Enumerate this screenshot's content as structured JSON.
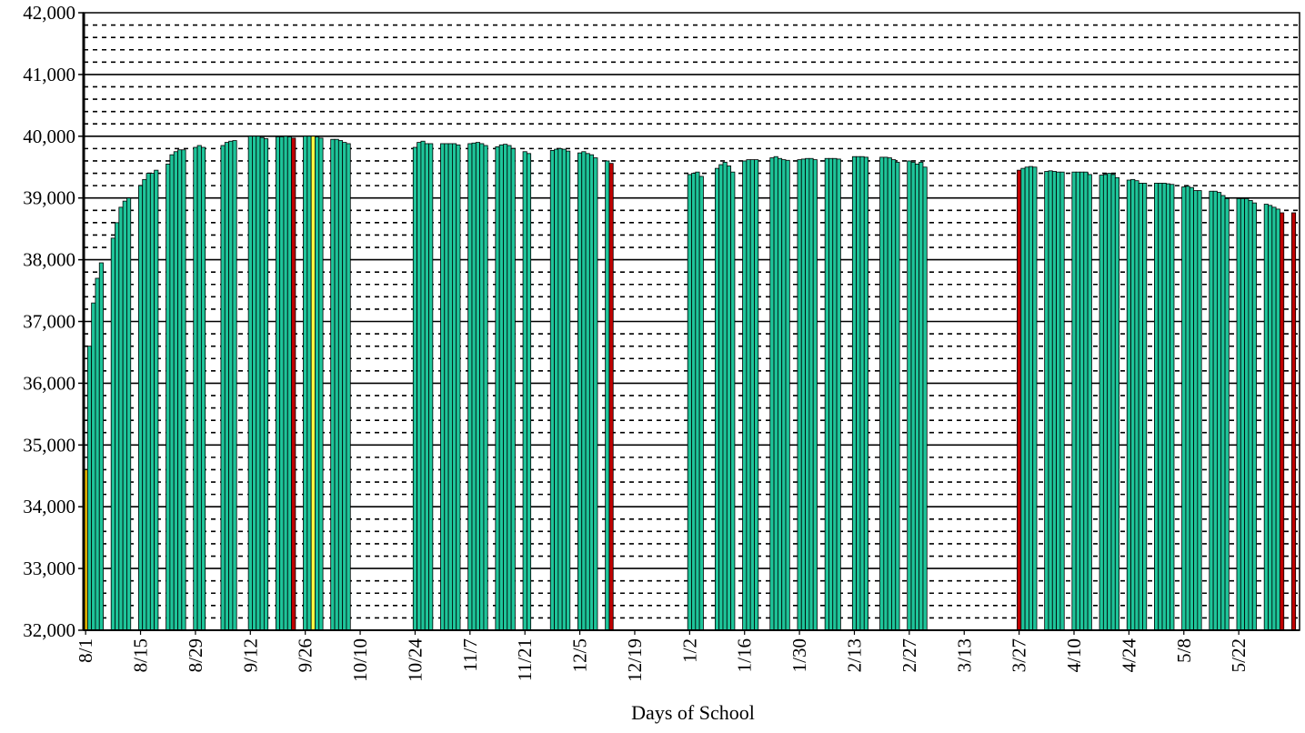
{
  "chart_data": {
    "type": "bar",
    "title": "",
    "xlabel": "Days of School",
    "ylabel": "",
    "ylim": [
      32000,
      42000
    ],
    "y_ticks": [
      "32,000",
      "33,000",
      "34,000",
      "35,000",
      "36,000",
      "37,000",
      "38,000",
      "39,000",
      "40,000",
      "41,000",
      "42,000"
    ],
    "x_tick_labels": [
      "8/1",
      "8/15",
      "8/29",
      "9/12",
      "9/26",
      "10/10",
      "10/24",
      "11/7",
      "11/21",
      "12/5",
      "12/19",
      "1/2",
      "1/16",
      "1/30",
      "2/13",
      "2/27",
      "3/13",
      "3/27",
      "4/10",
      "4/24",
      "5/8",
      "5/22"
    ],
    "grid": {
      "major": "solid",
      "minor": "dotted",
      "minor_step": 200
    },
    "colors": {
      "regular": "#1ec59a",
      "first_day": "#f0c000",
      "holiday_week": "#c00000",
      "highlight": "#ffff44",
      "edge": "#000000",
      "frame": "#000000"
    },
    "series": [
      {
        "values": [
          [
            0,
            34600,
            "first_day"
          ],
          [
            1,
            36600
          ],
          [
            2,
            37300
          ],
          [
            3,
            37700
          ],
          [
            4,
            37950
          ],
          [
            7,
            38350
          ],
          [
            8,
            38600
          ],
          [
            9,
            38850
          ],
          [
            10,
            38950
          ],
          [
            11,
            39000
          ],
          [
            14,
            39200
          ],
          [
            15,
            39300
          ],
          [
            16,
            39400
          ],
          [
            17,
            39400
          ],
          [
            18,
            39450
          ],
          [
            21,
            39550
          ],
          [
            22,
            39700
          ],
          [
            23,
            39750
          ],
          [
            24,
            39780
          ],
          [
            25,
            39780
          ],
          [
            28,
            39820
          ],
          [
            29,
            39850
          ],
          [
            30,
            39820
          ],
          [
            35,
            39850
          ],
          [
            36,
            39900
          ],
          [
            37,
            39920
          ],
          [
            38,
            39930
          ],
          [
            42,
            40000
          ],
          [
            43,
            40000
          ],
          [
            44,
            40000
          ],
          [
            45,
            39980
          ],
          [
            46,
            39960
          ],
          [
            49,
            39990
          ],
          [
            50,
            39990
          ],
          [
            51,
            40000
          ],
          [
            52,
            39990
          ],
          [
            53,
            39970,
            "holiday_week"
          ],
          [
            56,
            40000
          ],
          [
            57,
            40000
          ],
          [
            58,
            40000,
            "highlight"
          ],
          [
            59,
            39990
          ],
          [
            60,
            39970
          ],
          [
            63,
            39950
          ],
          [
            64,
            39950
          ],
          [
            65,
            39930
          ],
          [
            66,
            39900
          ],
          [
            67,
            39880
          ],
          [
            84,
            39820
          ],
          [
            85,
            39900
          ],
          [
            86,
            39920
          ],
          [
            87,
            39880
          ],
          [
            88,
            39880
          ],
          [
            91,
            39880
          ],
          [
            92,
            39880
          ],
          [
            93,
            39880
          ],
          [
            94,
            39880
          ],
          [
            95,
            39860
          ],
          [
            98,
            39880
          ],
          [
            99,
            39890
          ],
          [
            100,
            39900
          ],
          [
            101,
            39880
          ],
          [
            102,
            39850
          ],
          [
            105,
            39830
          ],
          [
            106,
            39860
          ],
          [
            107,
            39870
          ],
          [
            108,
            39850
          ],
          [
            109,
            39800
          ],
          [
            112,
            39750
          ],
          [
            113,
            39720
          ],
          [
            119,
            39770
          ],
          [
            120,
            39790
          ],
          [
            121,
            39800
          ],
          [
            122,
            39790
          ],
          [
            123,
            39760
          ],
          [
            126,
            39730
          ],
          [
            127,
            39750
          ],
          [
            128,
            39720
          ],
          [
            129,
            39700
          ],
          [
            130,
            39650
          ],
          [
            133,
            39600
          ],
          [
            134,
            39560,
            "holiday_week"
          ],
          [
            154,
            39380
          ],
          [
            155,
            39400
          ],
          [
            156,
            39420
          ],
          [
            157,
            39350
          ],
          [
            161,
            39480
          ],
          [
            162,
            39540
          ],
          [
            163,
            39580
          ],
          [
            164,
            39520
          ],
          [
            165,
            39420
          ],
          [
            168,
            39600
          ],
          [
            169,
            39620
          ],
          [
            170,
            39620
          ],
          [
            171,
            39620
          ],
          [
            175,
            39650
          ],
          [
            176,
            39670
          ],
          [
            177,
            39640
          ],
          [
            178,
            39620
          ],
          [
            179,
            39610
          ],
          [
            182,
            39620
          ],
          [
            183,
            39630
          ],
          [
            184,
            39640
          ],
          [
            185,
            39640
          ],
          [
            186,
            39620
          ],
          [
            189,
            39640
          ],
          [
            190,
            39640
          ],
          [
            191,
            39640
          ],
          [
            192,
            39630
          ],
          [
            196,
            39670
          ],
          [
            197,
            39670
          ],
          [
            198,
            39670
          ],
          [
            199,
            39660
          ],
          [
            203,
            39660
          ],
          [
            204,
            39660
          ],
          [
            205,
            39650
          ],
          [
            206,
            39620
          ],
          [
            207,
            39580
          ],
          [
            210,
            39600
          ],
          [
            211,
            39580
          ],
          [
            212,
            39550
          ],
          [
            213,
            39580
          ],
          [
            214,
            39500
          ],
          [
            238,
            39450,
            "holiday_week"
          ],
          [
            239,
            39480
          ],
          [
            240,
            39500
          ],
          [
            241,
            39510
          ],
          [
            242,
            39500
          ],
          [
            245,
            39430
          ],
          [
            246,
            39440
          ],
          [
            247,
            39430
          ],
          [
            248,
            39420
          ],
          [
            249,
            39420
          ],
          [
            252,
            39420
          ],
          [
            253,
            39420
          ],
          [
            254,
            39420
          ],
          [
            255,
            39420
          ],
          [
            256,
            39380
          ],
          [
            259,
            39370
          ],
          [
            260,
            39380
          ],
          [
            261,
            39400
          ],
          [
            262,
            39380
          ],
          [
            263,
            39330
          ],
          [
            266,
            39290
          ],
          [
            267,
            39300
          ],
          [
            268,
            39280
          ],
          [
            269,
            39240
          ],
          [
            270,
            39240
          ],
          [
            273,
            39240
          ],
          [
            274,
            39240
          ],
          [
            275,
            39240
          ],
          [
            276,
            39230
          ],
          [
            277,
            39220
          ],
          [
            280,
            39180
          ],
          [
            281,
            39190
          ],
          [
            282,
            39170
          ],
          [
            283,
            39120
          ],
          [
            284,
            39120
          ],
          [
            287,
            39110
          ],
          [
            288,
            39110
          ],
          [
            289,
            39090
          ],
          [
            290,
            39040
          ],
          [
            291,
            38990
          ],
          [
            294,
            38990
          ],
          [
            295,
            38990
          ],
          [
            296,
            38990
          ],
          [
            297,
            38960
          ],
          [
            298,
            38920
          ],
          [
            301,
            38900
          ],
          [
            302,
            38880
          ],
          [
            303,
            38850
          ],
          [
            304,
            38820
          ],
          [
            305,
            38760,
            "holiday_week"
          ],
          [
            308,
            38760,
            "holiday_week"
          ]
        ]
      }
    ]
  }
}
